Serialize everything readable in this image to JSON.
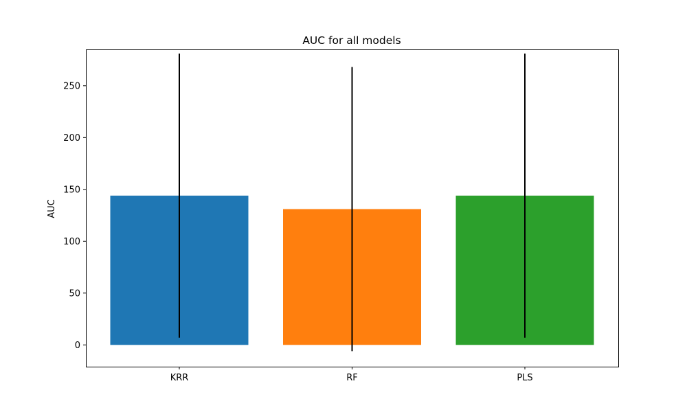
{
  "chart_data": {
    "type": "bar",
    "title": "AUC for all models",
    "xlabel": "",
    "ylabel": "AUC",
    "categories": [
      "KRR",
      "RF",
      "PLS"
    ],
    "values": [
      144,
      131,
      144
    ],
    "error_bars": [
      137,
      137,
      137
    ],
    "colors": [
      "#1f77b4",
      "#ff7f0e",
      "#2ca02c"
    ],
    "error_color": "#000000",
    "ylim": [
      -21,
      285
    ],
    "yticks": [
      0,
      50,
      100,
      150,
      200,
      250
    ],
    "grid": false,
    "legend": "none"
  }
}
